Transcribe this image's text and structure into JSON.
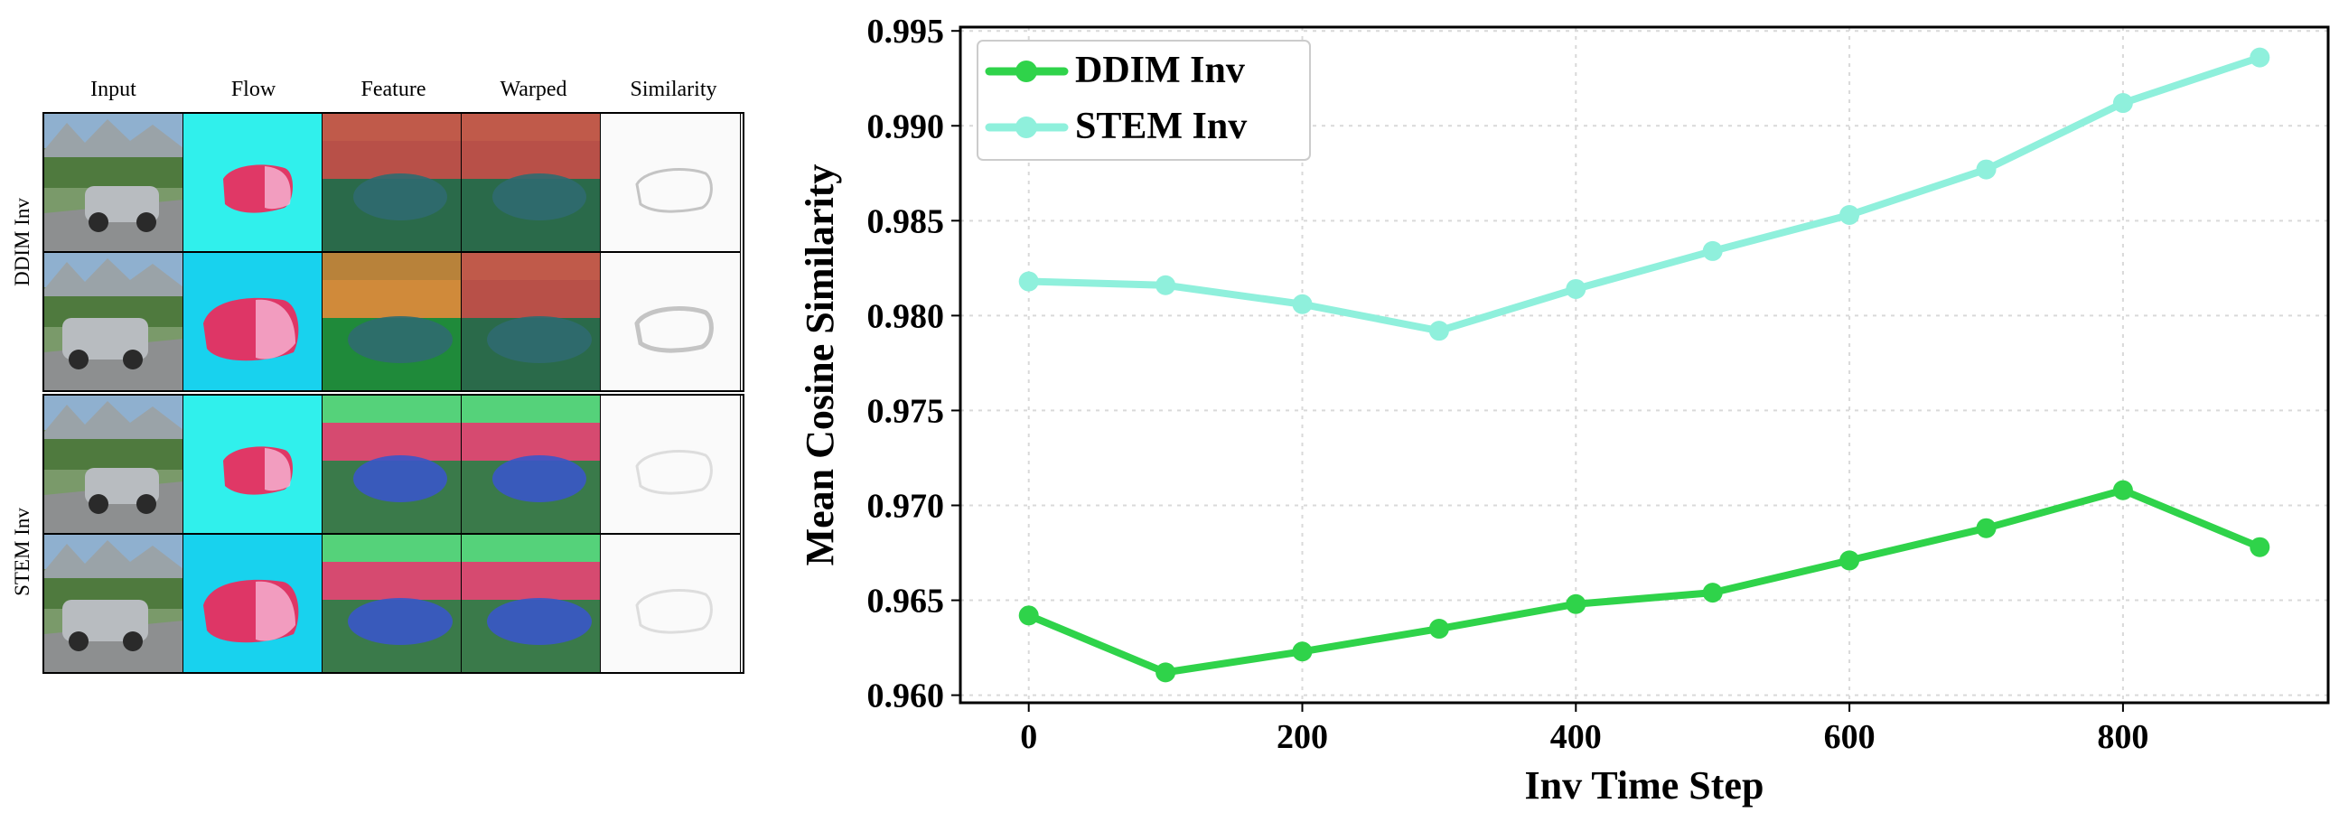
{
  "grid": {
    "column_headers": [
      "Input",
      "Flow",
      "Feature",
      "Warped",
      "Similarity"
    ],
    "row_groups": [
      "DDIM Inv",
      "STEM Inv"
    ]
  },
  "colors": {
    "ddim": "#2fd34a",
    "stem": "#8ff0dc",
    "flow_bg": "#30f0ec",
    "flow_bg_2": "#18d2ee",
    "flow_car": "#f0285a"
  },
  "chart_data": {
    "type": "line",
    "title": "",
    "xlabel": "Inv Time Step",
    "ylabel": "Mean Cosine Similarity",
    "x": [
      0,
      100,
      200,
      300,
      400,
      500,
      600,
      700,
      800,
      900
    ],
    "xlim": [
      -50,
      950
    ],
    "ylim": [
      0.9596,
      0.9952
    ],
    "xticks": [
      0,
      200,
      400,
      600,
      800
    ],
    "yticks": [
      0.96,
      0.965,
      0.97,
      0.975,
      0.98,
      0.985,
      0.99,
      0.995
    ],
    "ytick_labels": [
      "0.960",
      "0.965",
      "0.970",
      "0.975",
      "0.980",
      "0.985",
      "0.990",
      "0.995"
    ],
    "grid": true,
    "legend_position": "top-left",
    "series": [
      {
        "name": "DDIM Inv",
        "color": "#2fd34a",
        "values": [
          0.9642,
          0.9612,
          0.9623,
          0.9635,
          0.9648,
          0.9654,
          0.9671,
          0.9688,
          0.9708,
          0.9678
        ]
      },
      {
        "name": "STEM Inv",
        "color": "#8ff0dc",
        "values": [
          0.9818,
          0.9816,
          0.9806,
          0.9792,
          0.9814,
          0.9834,
          0.9853,
          0.9877,
          0.9912,
          0.9936
        ]
      }
    ]
  }
}
